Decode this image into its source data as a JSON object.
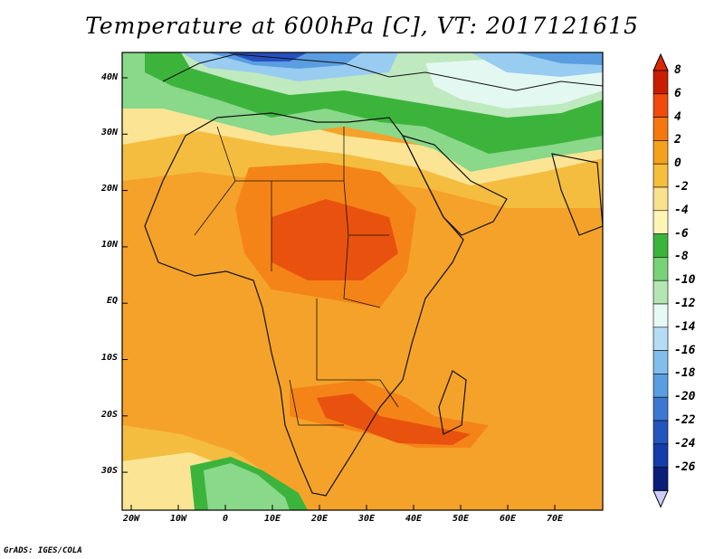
{
  "title": "Temperature at 600hPa [C], VT: 2017121615",
  "credit": "GrADS: IGES/COLA",
  "lat_labels": [
    "40N",
    "30N",
    "20N",
    "10N",
    "EQ",
    "10S",
    "20S",
    "30S"
  ],
  "lon_labels": [
    "20W",
    "10W",
    "0",
    "10E",
    "20E",
    "30E",
    "40E",
    "50E",
    "60E",
    "70E"
  ],
  "colorbar": {
    "labels": [
      "8",
      "6",
      "4",
      "2",
      "0",
      "-2",
      "-4",
      "-6",
      "-8",
      "-10",
      "-12",
      "-14",
      "-16",
      "-18",
      "-20",
      "-22",
      "-24",
      "-26"
    ],
    "colors": [
      "#c81e00",
      "#f04b0a",
      "#f5780f",
      "#f5a01e",
      "#f5be3c",
      "#fae18c",
      "#fff5b4",
      "#3cb43c",
      "#78d278",
      "#b4e6b4",
      "#e6faf5",
      "#b4dcf5",
      "#82beeb",
      "#5a9ee1",
      "#3c78d2",
      "#2355be",
      "#143caa",
      "#0a1e78"
    ],
    "max_color": "#dc2800",
    "min_color": "#ccccff"
  },
  "color_map": {
    "hottest": "#e8520e",
    "hot": "#f58418",
    "warm": "#f5a22a",
    "mild": "#f5bd40",
    "cool": "#fbe594",
    "cold_green": "#3cb43c",
    "light_green": "#8ad88a",
    "pale_green": "#bfe9bf",
    "pale_cyan": "#e4f8f2",
    "light_blue": "#98ccf0",
    "mid_blue": "#5a9ee1",
    "deep_blue": "#2850c0"
  }
}
